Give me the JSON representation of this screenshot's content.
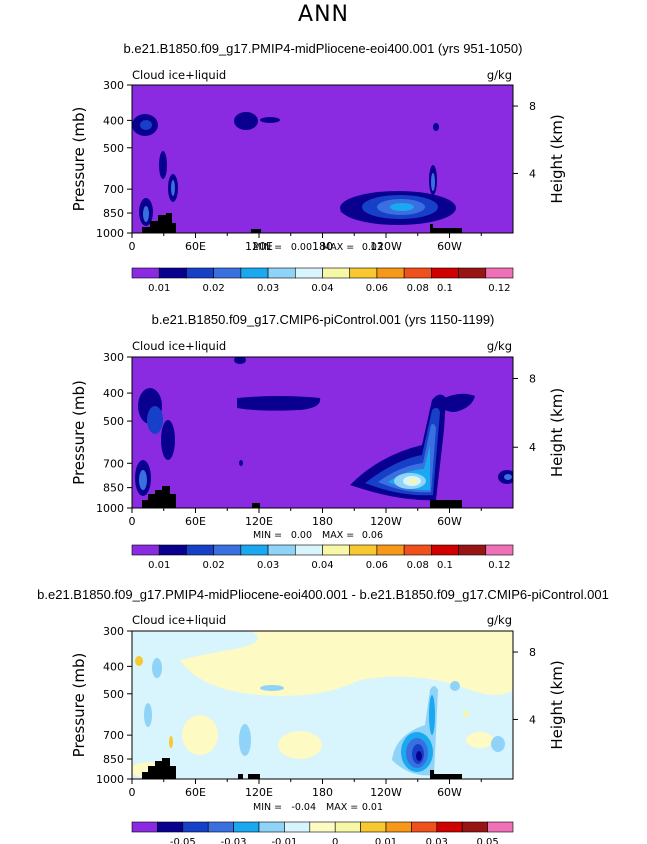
{
  "page_title": "ANN",
  "panels": [
    {
      "title": "b.e21.B1850.f09_g17.PMIP4-midPliocene-eoi400.001 (yrs 951-1050)",
      "variable": "Cloud ice+liquid",
      "units": "g/kg",
      "stats": {
        "min_label": "MIN =",
        "min": "0.00",
        "max_label": "MAX =",
        "max": "0.03"
      },
      "colorbar": {
        "labels": [
          "0.01",
          "0.02",
          "0.03",
          "0.04",
          "0.06",
          "0.08",
          "0.1",
          "0.12"
        ]
      }
    },
    {
      "title": "b.e21.B1850.f09_g17.CMIP6-piControl.001 (yrs 1150-1199)",
      "variable": "Cloud ice+liquid",
      "units": "g/kg",
      "stats": {
        "min_label": "MIN =",
        "min": "0.00",
        "max_label": "MAX =",
        "max": "0.06"
      },
      "colorbar": {
        "labels": [
          "0.01",
          "0.02",
          "0.03",
          "0.04",
          "0.06",
          "0.08",
          "0.1",
          "0.12"
        ]
      }
    },
    {
      "title": "b.e21.B1850.f09_g17.PMIP4-midPliocene-eoi400.001 - b.e21.B1850.f09_g17.CMIP6-piControl.001",
      "variable": "Cloud ice+liquid",
      "units": "g/kg",
      "stats": {
        "min_label": "MIN =",
        "min": "-0.04",
        "max_label": "MAX =",
        "max": "0.01"
      },
      "colorbar": {
        "labels": [
          "-0.05",
          "-0.03",
          "-0.01",
          "0",
          "0.01",
          "0.03",
          "0.05"
        ]
      }
    }
  ],
  "axes": {
    "ylabel_left": "Pressure (mb)",
    "ylabel_right": "Height (km)",
    "pressure_ticks": [
      "300",
      "400",
      "500",
      "700",
      "850",
      "1000"
    ],
    "height_ticks": [
      "8",
      "4"
    ],
    "lon_ticks": [
      "0",
      "60E",
      "120E",
      "180",
      "120W",
      "60W"
    ]
  },
  "colors": {
    "abs_scale": [
      "#8a2be2",
      "#0a0090",
      "#1740c8",
      "#3a6fe0",
      "#1aa8f0",
      "#8fd4f8",
      "#d8f4fc",
      "#f7f7a8",
      "#f7c830",
      "#f79818",
      "#f0501c",
      "#d00000",
      "#981414",
      "#f070b8"
    ],
    "diff_scale": [
      "#8a2be2",
      "#0a0090",
      "#1740c8",
      "#3a6fe0",
      "#1aa8f0",
      "#8fd4f8",
      "#d8f4fc",
      "#fdfac4",
      "#f7f7a8",
      "#f7c830",
      "#f79818",
      "#f0501c",
      "#d00000",
      "#981414",
      "#f070b8"
    ]
  },
  "chart_data": [
    {
      "type": "heatmap",
      "title": "b.e21.B1850.f09_g17.PMIP4-midPliocene-eoi400.001 (yrs 951-1050)",
      "xlabel": "",
      "ylabel": "Pressure (mb)",
      "ylabel_right": "Height (km)",
      "x_ticks": [
        "0",
        "60E",
        "120E",
        "180",
        "120W",
        "60W"
      ],
      "y_ticks": [
        300,
        400,
        500,
        700,
        850,
        1000
      ],
      "y_scale": "log",
      "xlim": [
        0,
        360
      ],
      "ylim": [
        1000,
        300
      ],
      "contour_levels": [
        0.01,
        0.02,
        0.03,
        0.04,
        0.06,
        0.08,
        0.1,
        0.12
      ],
      "min": 0.0,
      "max": 0.03,
      "features": [
        {
          "lon": 240,
          "p": 870,
          "value": 0.03
        },
        {
          "lon": 120,
          "p": 480,
          "value": 0.01
        },
        {
          "lon": 5,
          "p": 480,
          "value": 0.01
        },
        {
          "lon": 10,
          "p": 900,
          "value": 0.02
        },
        {
          "lon": 38,
          "p": 790,
          "value": 0.02
        },
        {
          "lon": 283,
          "p": 800,
          "value": 0.02
        }
      ]
    },
    {
      "type": "heatmap",
      "title": "b.e21.B1850.f09_g17.CMIP6-piControl.001 (yrs 1150-1199)",
      "xlabel": "",
      "ylabel": "Pressure (mb)",
      "ylabel_right": "Height (km)",
      "x_ticks": [
        "0",
        "60E",
        "120E",
        "180",
        "120W",
        "60W"
      ],
      "y_ticks": [
        300,
        400,
        500,
        700,
        850,
        1000
      ],
      "y_scale": "log",
      "xlim": [
        0,
        360
      ],
      "ylim": [
        1000,
        300
      ],
      "contour_levels": [
        0.01,
        0.02,
        0.03,
        0.04,
        0.06,
        0.08,
        0.1,
        0.12
      ],
      "min": 0.0,
      "max": 0.06,
      "features": [
        {
          "lon": 258,
          "p": 880,
          "value": 0.06
        },
        {
          "lon": 282,
          "p": 650,
          "value": 0.04
        },
        {
          "lon": 125,
          "p": 490,
          "value": 0.01
        },
        {
          "lon": 10,
          "p": 500,
          "value": 0.01
        },
        {
          "lon": 10,
          "p": 920,
          "value": 0.02
        },
        {
          "lon": 352,
          "p": 870,
          "value": 0.02
        }
      ]
    },
    {
      "type": "heatmap",
      "title": "b.e21.B1850.f09_g17.PMIP4-midPliocene-eoi400.001 - b.e21.B1850.f09_g17.CMIP6-piControl.001",
      "xlabel": "",
      "ylabel": "Pressure (mb)",
      "ylabel_right": "Height (km)",
      "x_ticks": [
        "0",
        "60E",
        "120E",
        "180",
        "120W",
        "60W"
      ],
      "y_ticks": [
        300,
        400,
        500,
        700,
        850,
        1000
      ],
      "y_scale": "log",
      "xlim": [
        0,
        360
      ],
      "ylim": [
        1000,
        300
      ],
      "contour_levels": [
        -0.05,
        -0.03,
        -0.01,
        0,
        0.01,
        0.03,
        0.05
      ],
      "min": -0.04,
      "max": 0.01,
      "features": [
        {
          "lon": 267,
          "p": 880,
          "value": -0.04
        },
        {
          "lon": 282,
          "p": 650,
          "value": -0.01
        },
        {
          "lon": 3,
          "p": 430,
          "value": 0.01
        },
        {
          "lon": 40,
          "p": 790,
          "value": 0.01
        },
        {
          "lon": 340,
          "p": 820,
          "value": -0.01
        }
      ]
    }
  ]
}
